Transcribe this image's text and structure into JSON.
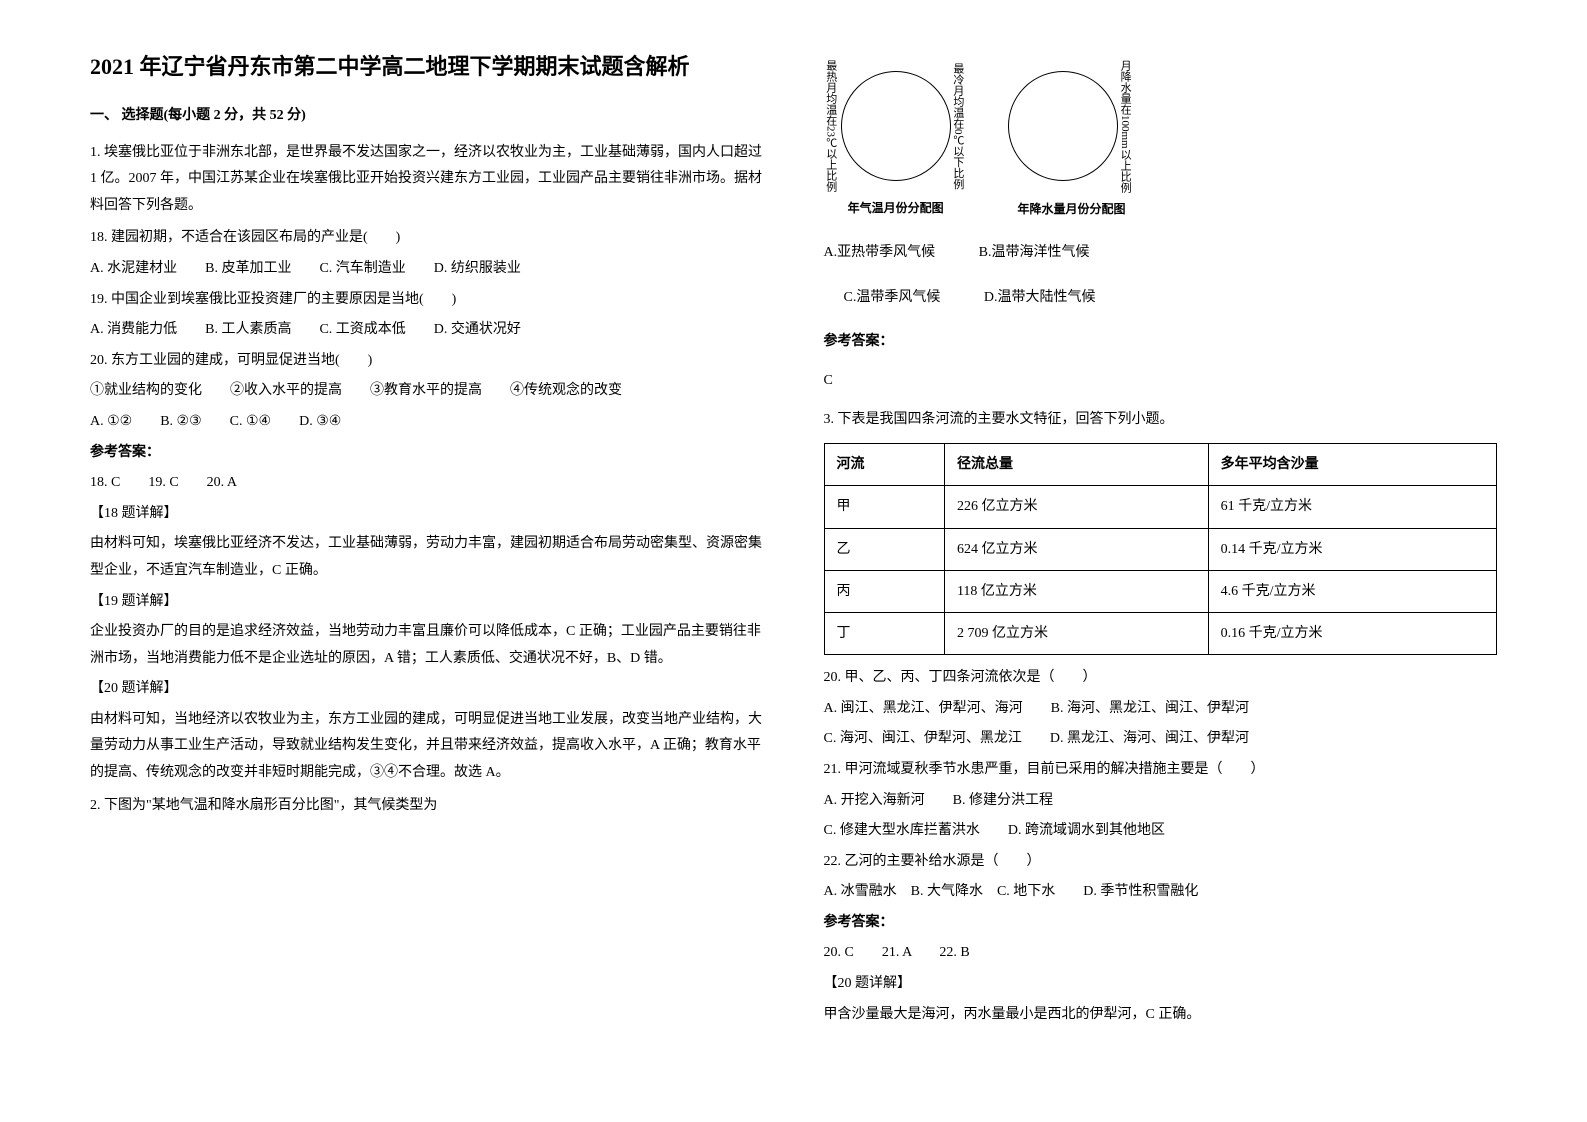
{
  "left": {
    "title": "2021 年辽宁省丹东市第二中学高二地理下学期期末试题含解析",
    "section_header": "一、 选择题(每小题 2 分，共 52 分)",
    "q1_stem": "1. 埃塞俄比亚位于非洲东北部，是世界最不发达国家之一，经济以农牧业为主，工业基础薄弱，国内人口超过 1 亿。2007 年，中国江苏某企业在埃塞俄比亚开始投资兴建东方工业园，工业园产品主要销往非洲市场。据材料回答下列各题。",
    "q18_line": "18.  建园初期，不适合在该园区布局的产业是(　　)",
    "q18_opts": "A. 水泥建材业　　B. 皮革加工业　　C. 汽车制造业　　D. 纺织服装业",
    "q19_line": "19.  中国企业到埃塞俄比亚投资建厂的主要原因是当地(　　)",
    "q19_opts": "A. 消费能力低　　B. 工人素质高　　C. 工资成本低　　D. 交通状况好",
    "q20_line": "20.  东方工业园的建成，可明显促进当地(　　)",
    "q20_subopts": "①就业结构的变化　　②收入水平的提高　　③教育水平的提高　　④传统观念的改变",
    "q20_opts": "A. ①②　　B. ②③　　C. ①④　　D. ③④",
    "ans_label": "参考答案：",
    "ans_line1": "18. C　　19. C　　20. A",
    "expl18_title": "【18 题详解】",
    "expl18_body": "由材料可知，埃塞俄比亚经济不发达，工业基础薄弱，劳动力丰富，建园初期适合布局劳动密集型、资源密集型企业，不适宜汽车制造业，C 正确。",
    "expl19_title": "【19 题详解】",
    "expl19_body": "企业投资办厂的目的是追求经济效益，当地劳动力丰富且廉价可以降低成本，C 正确；工业园产品主要销往非洲市场，当地消费能力低不是企业选址的原因，A 错；工人素质低、交通状况不好，B、D 错。",
    "expl20_title": "【20 题详解】",
    "expl20_body": "由材料可知，当地经济以农牧业为主，东方工业园的建成，可明显促进当地工业发展，改变当地产业结构，大量劳动力从事工业生产活动，导致就业结构发生变化，并且带来经济效益，提高收入水平，A 正确；教育水平的提高、传统观念的改变并非短时期能完成，③④不合理。故选 A。",
    "q2_stem": "2. 下图为\"某地气温和降水扇形百分比图\"，其气候类型为"
  },
  "right": {
    "chart1_vlabel": "最热月均温在23℃以上比例",
    "chart2_vlabel": "最冷月均温在0℃以下比例",
    "chart3_vlabel": "月降水量在100mm以上比例",
    "chart1_caption": "年气温月份分配图",
    "chart2_caption": "年降水量月份分配图",
    "pie1_gradient": "conic-gradient(#fff 0deg 45deg, repeating-linear-gradient(45deg,#000 0 2px,#fff 2px 5px) 45deg 260deg, #636363 260deg 340deg, #fff 340deg 360deg)",
    "pie2_gradient": "conic-gradient(#636363 0deg 200deg, repeating-linear-gradient(45deg,#000 0 2px,#fff 2px 5px) 200deg 360deg)",
    "climate_opts_row1_a": "A.亚热带季风气候",
    "climate_opts_row1_b": "B.温带海洋性气候",
    "climate_opts_row2_c": "C.温带季风气候",
    "climate_opts_row2_d": "D.温带大陆性气候",
    "ans_label": "参考答案：",
    "ans_letter": "C",
    "q3_stem": "3. 下表是我国四条河流的主要水文特征，回答下列小题。",
    "table": {
      "headers": [
        "河流",
        "径流总量",
        "多年平均含沙量"
      ],
      "rows": [
        [
          "甲",
          "226 亿立方米",
          "61 千克/立方米"
        ],
        [
          "乙",
          "624 亿立方米",
          "0.14 千克/立方米"
        ],
        [
          "丙",
          "118 亿立方米",
          "4.6 千克/立方米"
        ],
        [
          "丁",
          "2 709 亿立方米",
          "0.16 千克/立方米"
        ]
      ]
    },
    "q20b_line": "20.  甲、乙、丙、丁四条河流依次是（　　）",
    "q20b_optA": "A. 闽江、黑龙江、伊犁河、海河　　B. 海河、黑龙江、闽江、伊犁河",
    "q20b_optC": "C. 海河、闽江、伊犁河、黑龙江　　D. 黑龙江、海河、闽江、伊犁河",
    "q21_line": "21.  甲河流域夏秋季节水患严重，目前已采用的解决措施主要是（　　）",
    "q21_optA": "A. 开挖入海新河　　B. 修建分洪工程",
    "q21_optC": "C. 修建大型水库拦蓄洪水　　D. 跨流域调水到其他地区",
    "q22_line": "22.  乙河的主要补给水源是（　　）",
    "q22_opts": "A. 冰雪融水　B. 大气降水　C. 地下水　　D. 季节性积雪融化",
    "ans_label2": "参考答案：",
    "ans_line2": "20. C　　21. A　　22. B",
    "expl20b_title": "【20 题详解】",
    "expl20b_body": "甲含沙量最大是海河，丙水量最小是西北的伊犁河，C 正确。"
  }
}
